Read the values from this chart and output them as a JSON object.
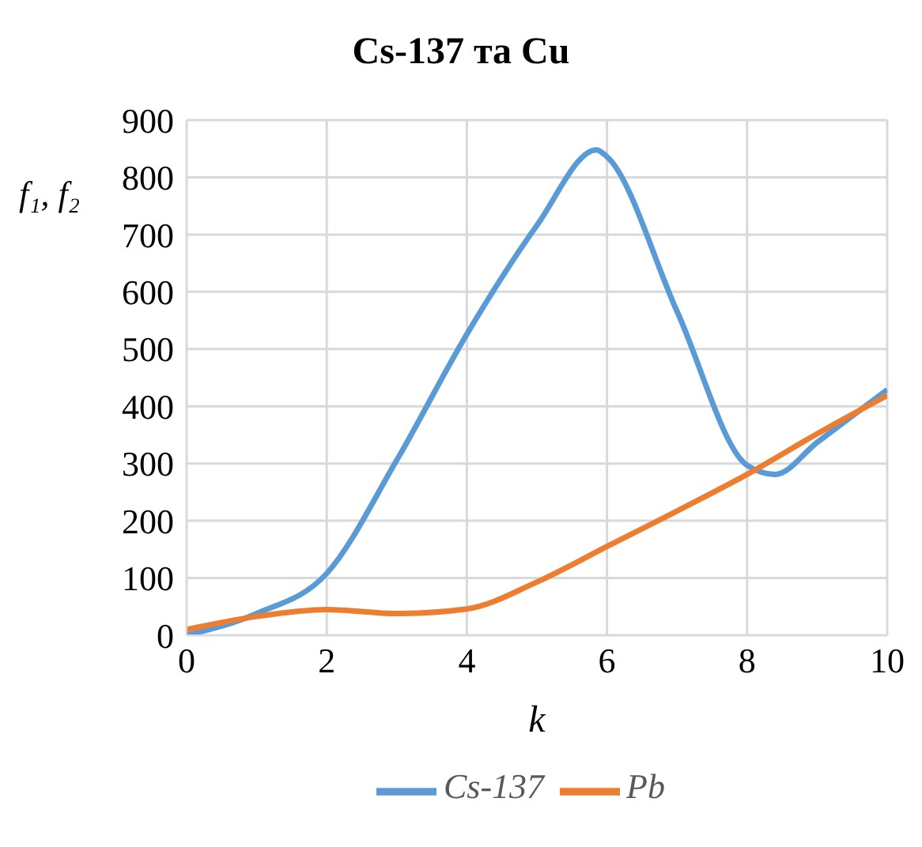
{
  "chart_data": {
    "type": "line",
    "title": "Cs-137 та Cu",
    "xlabel": "k",
    "ylabel": "f₁, f₂",
    "xlim": [
      0,
      10
    ],
    "xticks": [
      0,
      2,
      4,
      6,
      8,
      10
    ],
    "ylim": [
      0,
      900
    ],
    "yticks": [
      0,
      100,
      200,
      300,
      400,
      500,
      600,
      700,
      800,
      900
    ],
    "grid": true,
    "legend": "bottom",
    "marker": "none",
    "line_style": "solid",
    "series": [
      {
        "name": "Cs-137",
        "color": "#5b9bd5",
        "x": [
          0,
          1,
          2,
          3,
          4,
          5,
          5.85,
          6,
          7,
          8,
          8.4,
          9,
          10
        ],
        "values": [
          0,
          38,
          108,
          306,
          526,
          716,
          848,
          836,
          566,
          297,
          281,
          337,
          429
        ]
      },
      {
        "name": "Pb",
        "color": "#ed7d31",
        "x": [
          0,
          1,
          2,
          3,
          4,
          5,
          6,
          7,
          8,
          9,
          10
        ],
        "values": [
          10,
          33,
          45,
          38,
          46,
          93,
          155,
          217,
          281,
          352,
          419
        ]
      }
    ]
  }
}
